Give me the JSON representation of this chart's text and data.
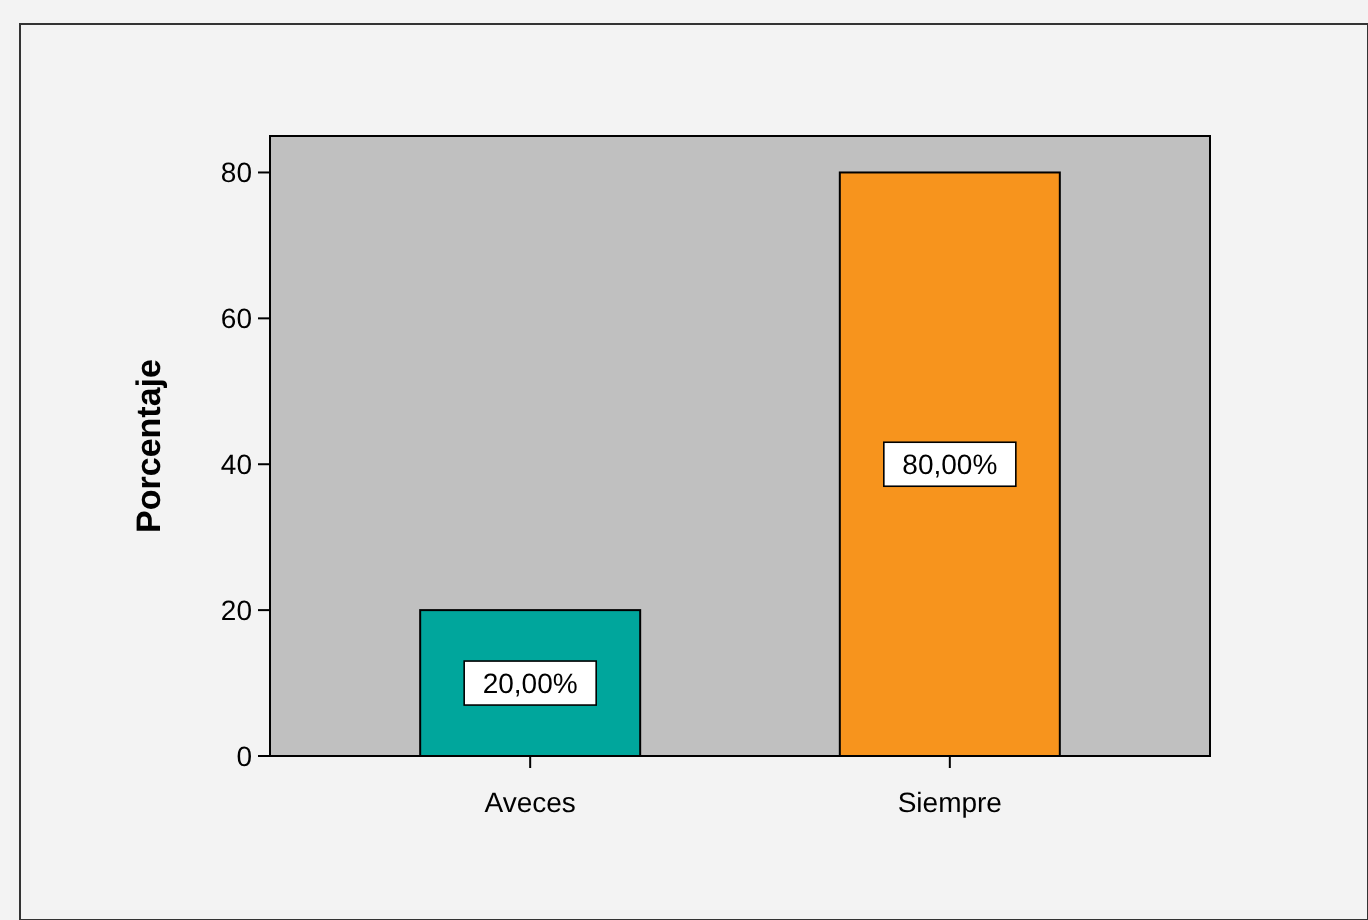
{
  "chart_data": {
    "type": "bar",
    "ylabel": "Porcentaje",
    "categories": [
      "Aveces",
      "Siempre"
    ],
    "values": [
      20,
      80
    ],
    "colors": [
      "#00a69c",
      "#f7941d"
    ],
    "value_labels": [
      "20,00%",
      "80,00%"
    ],
    "ylim": [
      0,
      85
    ],
    "yticks": [
      0,
      20,
      40,
      60,
      80
    ],
    "grid": false
  }
}
